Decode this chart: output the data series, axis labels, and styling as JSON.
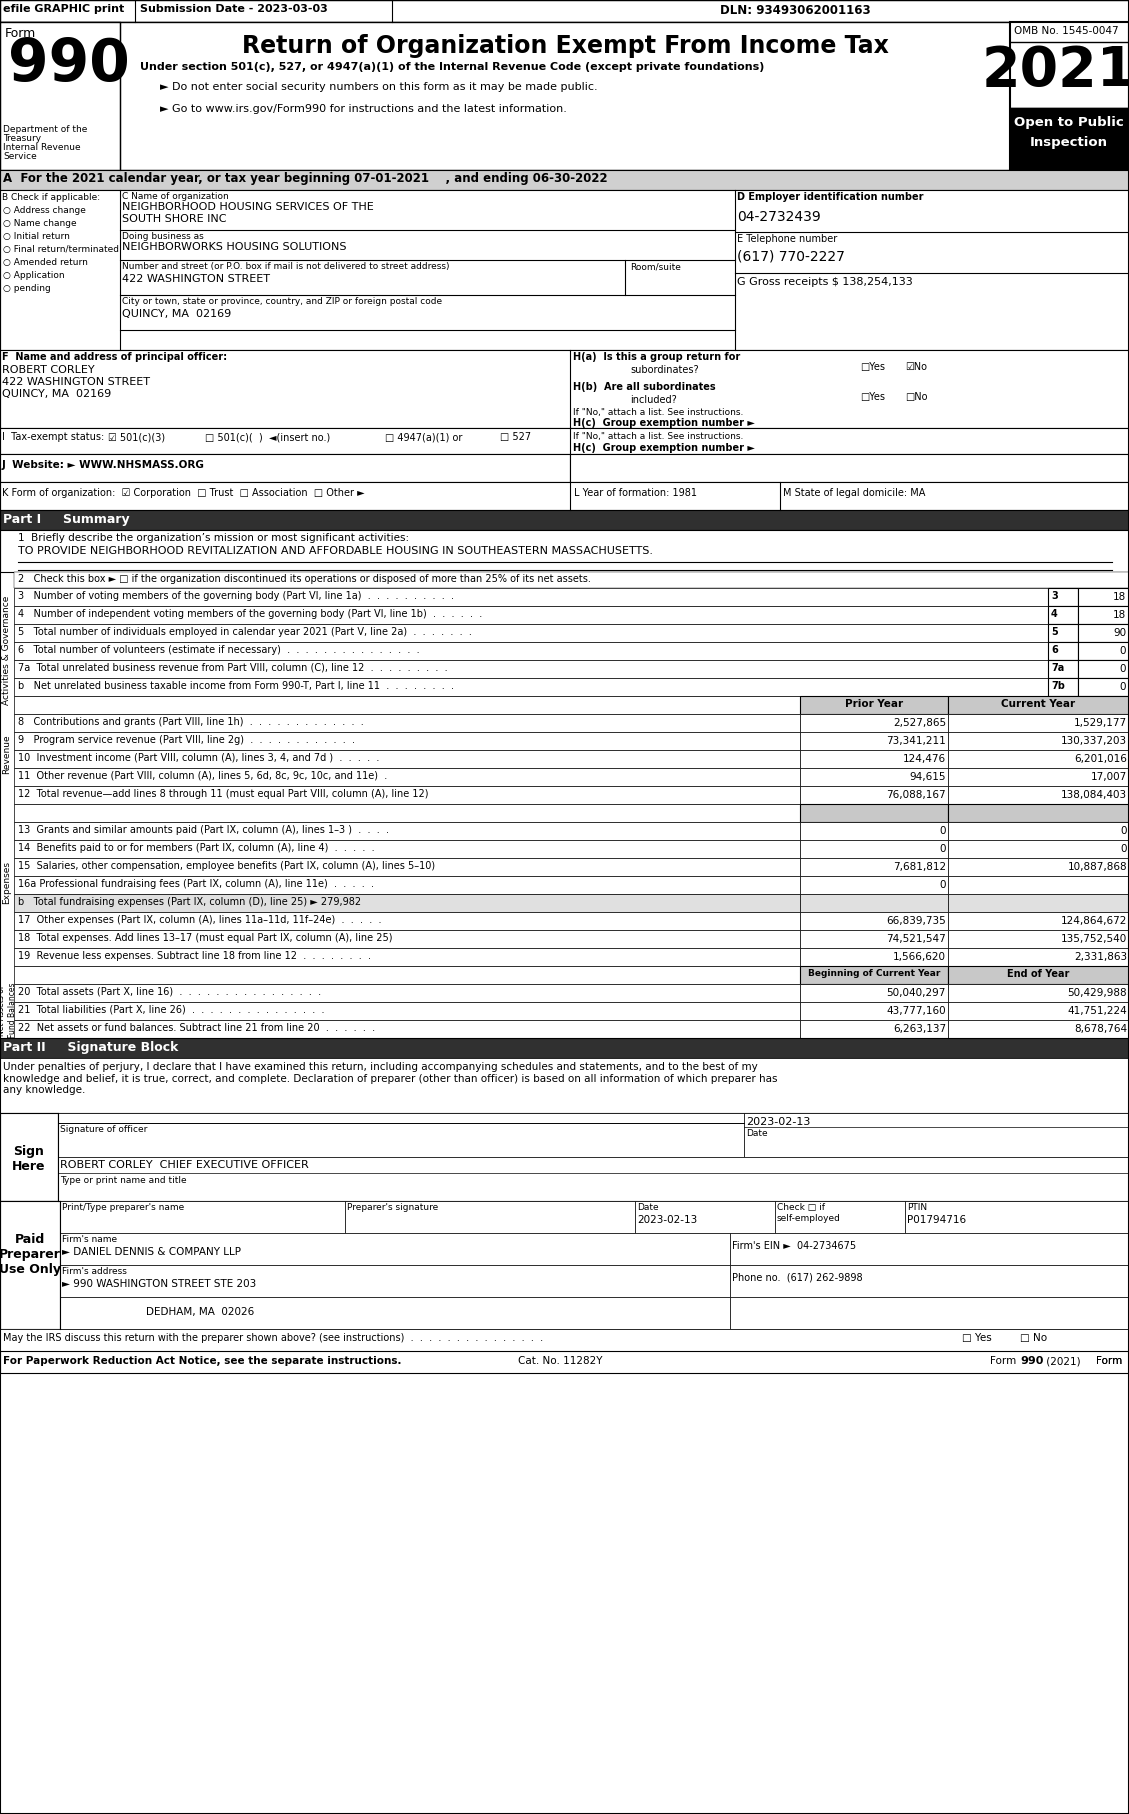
{
  "title": "Return of Organization Exempt From Income Tax",
  "form_number": "990",
  "year": "2021",
  "omb": "OMB No. 1545-0047",
  "efile_header": "efile GRAPHIC print",
  "submission_date": "Submission Date - 2023-03-03",
  "dln": "DLN: 93493062001163",
  "subtitle1": "Under section 501(c), 527, or 4947(a)(1) of the Internal Revenue Code (except private foundations)",
  "bullet1": "► Do not enter social security numbers on this form as it may be made public.",
  "bullet2": "► Go to www.irs.gov/Form990 for instructions and the latest information.",
  "line_a": "A  For the 2021 calendar year, or tax year beginning 07-01-2021    , and ending 06-30-2022",
  "check_b_label": "B Check if applicable:",
  "check_options": [
    "Address change",
    "Name change",
    "Initial return",
    "Final return/terminated",
    "Amended return",
    "Application\npending"
  ],
  "org_name_label": "C Name of organization",
  "org_name1": "NEIGHBORHOOD HOUSING SERVICES OF THE",
  "org_name2": "SOUTH SHORE INC",
  "dba_label": "Doing business as",
  "dba": "NEIGHBORWORKS HOUSING SOLUTIONS",
  "street_label": "Number and street (or P.O. box if mail is not delivered to street address)",
  "street": "422 WASHINGTON STREET",
  "room_label": "Room/suite",
  "city_label": "City or town, state or province, country, and ZIP or foreign postal code",
  "city": "QUINCY, MA  02169",
  "ein_label": "D Employer identification number",
  "ein": "04-2732439",
  "phone_label": "E Telephone number",
  "phone": "(617) 770-2227",
  "gross_label": "G Gross receipts $ ",
  "gross": "138,254,133",
  "principal_label": "F  Name and address of principal officer:",
  "principal1": "ROBERT CORLEY",
  "principal2": "422 WASHINGTON STREET",
  "principal3": "QUINCY, MA  02169",
  "ha_label": "H(a)  Is this a group return for",
  "ha_sub": "subordinates?",
  "hb_label": "H(b)  Are all subordinates",
  "hb_sub": "included?",
  "hno_label": "If \"No,\" attach a list. See instructions.",
  "hc_label": "H(c)  Group exemption number ►",
  "tax_exempt_label": "I  Tax-exempt status:",
  "website_label": "J  Website: ►",
  "website": "WWW.NHSMASS.ORG",
  "form_org_label": "K Form of organization:",
  "form_org_options": "☑ Corporation  □ Trust  □ Association  □ Other ►",
  "year_formed_label": "L Year of formation: 1981",
  "state_label": "M State of legal domicile: MA",
  "part1_header": "Part I     Summary",
  "mission_label": "1  Briefly describe the organization’s mission or most significant activities:",
  "mission": "TO PROVIDE NEIGHBORHOOD REVITALIZATION AND AFFORDABLE HOUSING IN SOUTHEASTERN MASSACHUSETTS.",
  "check2_label": "2   Check this box ► □ if the organization discontinued its operations or disposed of more than 25% of its net assets.",
  "line3_label": "3   Number of voting members of the governing body (Part VI, line 1a)  .  .  .  .  .  .  .  .  .  .",
  "line3_num": "3",
  "line3_val": "18",
  "line4_label": "4   Number of independent voting members of the governing body (Part VI, line 1b)  .  .  .  .  .  .",
  "line4_num": "4",
  "line4_val": "18",
  "line5_label": "5   Total number of individuals employed in calendar year 2021 (Part V, line 2a)  .  .  .  .  .  .  .",
  "line5_num": "5",
  "line5_val": "90",
  "line6_label": "6   Total number of volunteers (estimate if necessary)  .  .  .  .  .  .  .  .  .  .  .  .  .  .  .",
  "line6_num": "6",
  "line6_val": "0",
  "line7a_label": "7a  Total unrelated business revenue from Part VIII, column (C), line 12  .  .  .  .  .  .  .  .  .",
  "line7a_num": "7a",
  "line7a_val": "0",
  "line7b_label": "b   Net unrelated business taxable income from Form 990-T, Part I, line 11  .  .  .  .  .  .  .  .",
  "line7b_num": "7b",
  "line7b_val": "0",
  "prior_year": "Prior Year",
  "current_year": "Current Year",
  "line8_label": "8   Contributions and grants (Part VIII, line 1h)  .  .  .  .  .  .  .  .  .  .  .  .  .",
  "line8_prior": "2,527,865",
  "line8_current": "1,529,177",
  "line9_label": "9   Program service revenue (Part VIII, line 2g)  .  .  .  .  .  .  .  .  .  .  .  .",
  "line9_prior": "73,341,211",
  "line9_current": "130,337,203",
  "line10_label": "10  Investment income (Part VIII, column (A), lines 3, 4, and 7d )  .  .  .  .  .",
  "line10_prior": "124,476",
  "line10_current": "6,201,016",
  "line11_label": "11  Other revenue (Part VIII, column (A), lines 5, 6d, 8c, 9c, 10c, and 11e)  .",
  "line11_prior": "94,615",
  "line11_current": "17,007",
  "line12_label": "12  Total revenue—add lines 8 through 11 (must equal Part VIII, column (A), line 12)",
  "line12_prior": "76,088,167",
  "line12_current": "138,084,403",
  "line13_label": "13  Grants and similar amounts paid (Part IX, column (A), lines 1–3 )  .  .  .  .",
  "line13_prior": "0",
  "line13_current": "0",
  "line14_label": "14  Benefits paid to or for members (Part IX, column (A), line 4)  .  .  .  .  .",
  "line14_prior": "0",
  "line14_current": "0",
  "line15_label": "15  Salaries, other compensation, employee benefits (Part IX, column (A), lines 5–10)",
  "line15_prior": "7,681,812",
  "line15_current": "10,887,868",
  "line16a_label": "16a Professional fundraising fees (Part IX, column (A), line 11e)  .  .  .  .  .",
  "line16a_prior": "0",
  "line16a_current": "",
  "line16b_label": "b   Total fundraising expenses (Part IX, column (D), line 25) ► 279,982",
  "line17_label": "17  Other expenses (Part IX, column (A), lines 11a–11d, 11f–24e)  .  .  .  .  .",
  "line17_prior": "66,839,735",
  "line17_current": "124,864,672",
  "line18_label": "18  Total expenses. Add lines 13–17 (must equal Part IX, column (A), line 25)",
  "line18_prior": "74,521,547",
  "line18_current": "135,752,540",
  "line19_label": "19  Revenue less expenses. Subtract line 18 from line 12  .  .  .  .  .  .  .  .",
  "line19_prior": "1,566,620",
  "line19_current": "2,331,863",
  "beg_year": "Beginning of Current Year",
  "end_year": "End of Year",
  "line20_label": "20  Total assets (Part X, line 16)  .  .  .  .  .  .  .  .  .  .  .  .  .  .  .  .",
  "line20_beg": "50,040,297",
  "line20_end": "50,429,988",
  "line21_label": "21  Total liabilities (Part X, line 26)  .  .  .  .  .  .  .  .  .  .  .  .  .  .  .",
  "line21_beg": "43,777,160",
  "line21_end": "41,751,224",
  "line22_label": "22  Net assets or fund balances. Subtract line 21 from line 20  .  .  .  .  .  .",
  "line22_beg": "6,263,137",
  "line22_end": "8,678,764",
  "part2_header": "Part II     Signature Block",
  "sig_perjury": "Under penalties of perjury, I declare that I have examined this return, including accompanying schedules and statements, and to the best of my\nknowledge and belief, it is true, correct, and complete. Declaration of preparer (other than officer) is based on all information of which preparer has\nany knowledge.",
  "sig_label": "Signature of officer",
  "sig_date_label": "Date",
  "sig_date": "2023-02-13",
  "sig_name": "ROBERT CORLEY  CHIEF EXECUTIVE OFFICER",
  "sig_title_label": "Type or print name and title",
  "sign_here": "Sign\nHere",
  "paid_preparer": "Paid\nPreparer\nUse Only",
  "preparer_name_label": "Print/Type preparer's name",
  "preparer_sig_label": "Preparer's signature",
  "preparer_date_label": "Date",
  "preparer_check": "Check □ if\nself-employed",
  "preparer_ptin_label": "PTIN",
  "preparer_ptin": "P01794716",
  "preparer_date": "2023-02-13",
  "firm_name_label": "Firm's name",
  "firm_name": "► DANIEL DENNIS & COMPANY LLP",
  "firm_ein_label": "Firm's EIN ►",
  "firm_ein": "04-2734675",
  "firm_addr_label": "Firm's address",
  "firm_addr": "► 990 WASHINGTON STREET STE 203",
  "firm_city": "DEDHAM, MA  02026",
  "firm_phone_label": "Phone no.",
  "firm_phone": "(617) 262-9898",
  "irs_discuss_label": "May the IRS discuss this return with the preparer shown above? (see instructions)  .  .  .  .  .  .  .  .  .  .  .  .  .  .  .",
  "paperwork_label": "For Paperwork Reduction Act Notice, see the separate instructions.",
  "cat_no": "Cat. No. 11282Y",
  "form_footer": "Form 990 (2021)"
}
